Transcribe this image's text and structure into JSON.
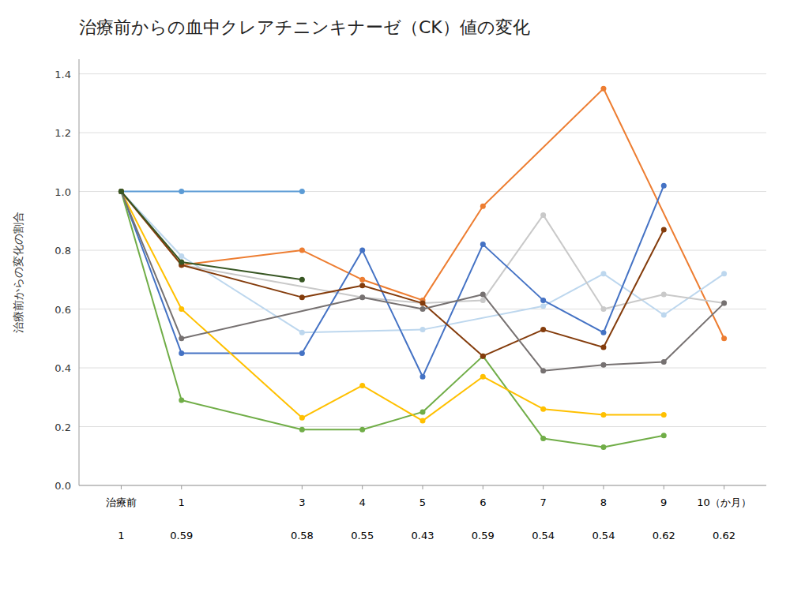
{
  "chart_data": {
    "type": "line",
    "title": "治療前からの血中クレアチニンキナーゼ（CK）値の変化",
    "ylabel": "治療前からの変化の割合",
    "xlim": [
      -0.7,
      10.7
    ],
    "xticks": [
      {
        "value": 0,
        "label": "治療前"
      },
      1,
      3,
      4,
      5,
      6,
      7,
      8,
      9,
      {
        "value": 10,
        "label": "10（か月）"
      }
    ],
    "ylim": [
      0,
      1.45
    ],
    "yticks": [
      {
        "value": 0,
        "label": "0.0"
      },
      0.2,
      0.4,
      0.6,
      0.8,
      {
        "value": 1.0,
        "label": "1.0"
      },
      1.2,
      1.4
    ],
    "grid": true,
    "marker": "circle",
    "annotations": [
      {
        "x": 0,
        "text": "1"
      },
      {
        "x": 1,
        "text": "0.59"
      },
      {
        "x": 3,
        "text": "0.58"
      },
      {
        "x": 4,
        "text": "0.55"
      },
      {
        "x": 5,
        "text": "0.43"
      },
      {
        "x": 6,
        "text": "0.59"
      },
      {
        "x": 7,
        "text": "0.54"
      },
      {
        "x": 8,
        "text": "0.54"
      },
      {
        "x": 9,
        "text": "0.62"
      },
      {
        "x": 10,
        "text": "0.62"
      }
    ],
    "series": [
      {
        "color": "#5B9BD5",
        "x": [
          0,
          1,
          3
        ],
        "values": [
          1.0,
          1.0,
          1.0
        ]
      },
      {
        "color": "#ED7D31",
        "x": [
          0,
          1,
          3,
          4,
          5,
          6,
          8,
          10
        ],
        "values": [
          1.0,
          0.75,
          0.8,
          0.7,
          0.63,
          0.95,
          1.35,
          0.5
        ]
      },
      {
        "color": "#BDD7EE",
        "x": [
          0,
          1,
          3,
          5,
          7,
          8,
          9,
          10
        ],
        "values": [
          1.0,
          0.78,
          0.52,
          0.53,
          0.61,
          0.72,
          0.58,
          0.72
        ]
      },
      {
        "color": "#C9C9C9",
        "x": [
          0,
          1,
          4,
          5,
          6,
          7,
          8,
          9,
          10
        ],
        "values": [
          1.0,
          0.75,
          0.64,
          0.62,
          0.63,
          0.92,
          0.6,
          0.65,
          0.62
        ]
      },
      {
        "color": "#4472C4",
        "x": [
          0,
          1,
          3,
          4,
          5,
          6,
          7,
          8,
          9
        ],
        "values": [
          1.0,
          0.45,
          0.45,
          0.8,
          0.37,
          0.82,
          0.63,
          0.52,
          1.02
        ]
      },
      {
        "color": "#70AD47",
        "x": [
          0,
          1,
          3,
          4,
          5,
          6,
          7,
          8,
          9
        ],
        "values": [
          1.0,
          0.29,
          0.19,
          0.19,
          0.25,
          0.44,
          0.16,
          0.13,
          0.17
        ]
      },
      {
        "color": "#FFC000",
        "x": [
          0,
          1,
          3,
          4,
          5,
          6,
          7,
          8,
          9
        ],
        "values": [
          1.0,
          0.6,
          0.23,
          0.34,
          0.22,
          0.37,
          0.26,
          0.24,
          0.24
        ]
      },
      {
        "color": "#843C0C",
        "x": [
          0,
          1,
          3,
          4,
          5,
          6,
          7,
          8,
          9
        ],
        "values": [
          1.0,
          0.75,
          0.64,
          0.68,
          0.62,
          0.44,
          0.53,
          0.47,
          0.87
        ]
      },
      {
        "color": "#767171",
        "x": [
          0,
          1,
          4,
          5,
          6,
          7,
          8,
          9,
          10
        ],
        "values": [
          1.0,
          0.5,
          0.64,
          0.6,
          0.65,
          0.39,
          0.41,
          0.42,
          0.62
        ]
      },
      {
        "color": "#375623",
        "x": [
          0,
          1,
          3
        ],
        "values": [
          1.0,
          0.76,
          0.7
        ]
      }
    ]
  }
}
